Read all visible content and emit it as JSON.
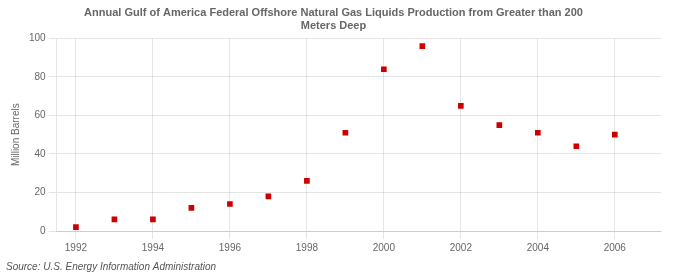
{
  "chart_data": {
    "type": "scatter",
    "title": "Annual Gulf of America Federal Offshore Natural Gas Liquids Production from Greater than 200\nMeters Deep",
    "ylabel": "Million Barrels",
    "annotations": [
      "Source: U.S. Energy Information Administration"
    ],
    "x": [
      1992,
      1993,
      1994,
      1995,
      1996,
      1997,
      1998,
      1999,
      2000,
      2001,
      2002,
      2003,
      2004,
      2005,
      2006
    ],
    "values": [
      2,
      6,
      6,
      12,
      14,
      18,
      26,
      51,
      84,
      96,
      65,
      55,
      51,
      44,
      50
    ],
    "color": "#cc0000",
    "marker": "square",
    "xlim": [
      1991.5,
      2007.2
    ],
    "xticks": [
      1992,
      1994,
      1996,
      1998,
      2000,
      2002,
      2004,
      2006
    ],
    "ylim": [
      0,
      100
    ],
    "yticks": [
      0,
      20,
      40,
      60,
      80,
      100
    ],
    "grid": true
  }
}
